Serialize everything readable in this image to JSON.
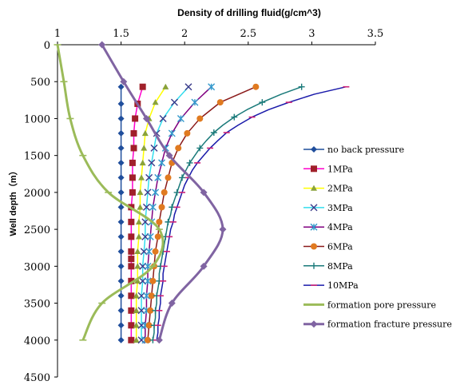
{
  "chart_data": {
    "type": "line",
    "title": "Density of drilling fluid(g/cm^3)",
    "xlabel": "Density of drilling fluid(g/cm^3)",
    "ylabel": "Well depth（m）",
    "xlim": [
      1,
      3.5
    ],
    "ylim": [
      0,
      4500
    ],
    "x_axis_position": "top",
    "y_axis_inverted": true,
    "grid": false,
    "legend_position": "right",
    "x_ticks": [
      1,
      1.5,
      2,
      2.5,
      3,
      3.5
    ],
    "x_tick_labels": [
      "1",
      "1.5",
      "2",
      "2.5",
      "3",
      "3.5"
    ],
    "y_ticks": [
      0,
      500,
      1000,
      1500,
      2000,
      2500,
      3000,
      3500,
      4000,
      4500
    ],
    "y_tick_labels": [
      "0",
      "500",
      "1000",
      "1500",
      "2000",
      "2500",
      "3000",
      "3500",
      "4000",
      "4500"
    ],
    "series": [
      {
        "name": "no back pressure",
        "color": "#1f4e9c",
        "marker": "diamond",
        "line_width": 1.5,
        "marker_every": 1,
        "points": [
          [
            1.5,
            570
          ],
          [
            1.5,
            800
          ],
          [
            1.5,
            1000
          ],
          [
            1.5,
            1200
          ],
          [
            1.5,
            1400
          ],
          [
            1.5,
            1600
          ],
          [
            1.5,
            1800
          ],
          [
            1.5,
            2000
          ],
          [
            1.5,
            2200
          ],
          [
            1.5,
            2400
          ],
          [
            1.5,
            2600
          ],
          [
            1.5,
            2800
          ],
          [
            1.5,
            3000
          ],
          [
            1.5,
            3200
          ],
          [
            1.5,
            3400
          ],
          [
            1.5,
            3600
          ],
          [
            1.5,
            3800
          ],
          [
            1.5,
            4000
          ]
        ]
      },
      {
        "name": "1MPa",
        "color": "#ff00cc",
        "marker": "square",
        "marker_color": "#a0202a",
        "line_width": 1.5,
        "marker_every": 1,
        "points": [
          [
            1.67,
            570
          ],
          [
            1.63,
            800
          ],
          [
            1.61,
            1000
          ],
          [
            1.6,
            1200
          ],
          [
            1.6,
            1400
          ],
          [
            1.59,
            1600
          ],
          [
            1.59,
            1800
          ],
          [
            1.59,
            2000
          ],
          [
            1.58,
            2200
          ],
          [
            1.58,
            2400
          ],
          [
            1.58,
            2600
          ],
          [
            1.58,
            2800
          ],
          [
            1.58,
            2900
          ],
          [
            1.58,
            3000
          ],
          [
            1.58,
            3200
          ],
          [
            1.58,
            3400
          ],
          [
            1.58,
            3600
          ],
          [
            1.58,
            3800
          ],
          [
            1.58,
            4000
          ]
        ]
      },
      {
        "name": "2MPa",
        "color": "#ffff00",
        "marker": "triangle",
        "marker_color": "#8aa23a",
        "line_width": 1.5,
        "marker_every": 1,
        "points": [
          [
            1.85,
            570
          ],
          [
            1.77,
            780
          ],
          [
            1.72,
            1000
          ],
          [
            1.69,
            1200
          ],
          [
            1.68,
            1400
          ],
          [
            1.67,
            1600
          ],
          [
            1.66,
            1800
          ],
          [
            1.65,
            2000
          ],
          [
            1.65,
            2200
          ],
          [
            1.64,
            2400
          ],
          [
            1.64,
            2600
          ],
          [
            1.63,
            2800
          ],
          [
            1.63,
            3000
          ],
          [
            1.63,
            3200
          ],
          [
            1.62,
            3400
          ],
          [
            1.62,
            3600
          ],
          [
            1.62,
            3800
          ],
          [
            1.62,
            4000
          ]
        ]
      },
      {
        "name": "3MPa",
        "color": "#33ddee",
        "marker": "x",
        "marker_color": "#3a3a8a",
        "line_width": 1.5,
        "marker_every": 1,
        "points": [
          [
            2.03,
            570
          ],
          [
            1.92,
            780
          ],
          [
            1.83,
            1000
          ],
          [
            1.78,
            1200
          ],
          [
            1.76,
            1400
          ],
          [
            1.74,
            1600
          ],
          [
            1.72,
            1800
          ],
          [
            1.71,
            2000
          ],
          [
            1.7,
            2200
          ],
          [
            1.69,
            2400
          ],
          [
            1.69,
            2600
          ],
          [
            1.68,
            2800
          ],
          [
            1.67,
            3000
          ],
          [
            1.67,
            3200
          ],
          [
            1.66,
            3400
          ],
          [
            1.66,
            3600
          ],
          [
            1.66,
            3800
          ],
          [
            1.66,
            4000
          ]
        ]
      },
      {
        "name": "4MPa",
        "color": "#800080",
        "marker": "x-star",
        "marker_color": "#3399cc",
        "line_width": 1.5,
        "marker_every": 1,
        "points": [
          [
            2.21,
            570
          ],
          [
            2.08,
            780
          ],
          [
            1.97,
            1000
          ],
          [
            1.9,
            1200
          ],
          [
            1.85,
            1400
          ],
          [
            1.82,
            1600
          ],
          [
            1.79,
            1800
          ],
          [
            1.77,
            2000
          ],
          [
            1.75,
            2200
          ],
          [
            1.74,
            2400
          ],
          [
            1.73,
            2600
          ],
          [
            1.72,
            2800
          ],
          [
            1.71,
            3000
          ],
          [
            1.71,
            3200
          ],
          [
            1.7,
            3400
          ],
          [
            1.7,
            3600
          ],
          [
            1.69,
            3800
          ],
          [
            1.69,
            4000
          ]
        ]
      },
      {
        "name": "6MPa",
        "color": "#8b1a1a",
        "marker": "circle",
        "marker_color": "#e07a20",
        "line_width": 1.5,
        "marker_every": 1,
        "points": [
          [
            2.56,
            570
          ],
          [
            2.28,
            780
          ],
          [
            2.12,
            1000
          ],
          [
            2.02,
            1200
          ],
          [
            1.95,
            1400
          ],
          [
            1.9,
            1600
          ],
          [
            1.87,
            1800
          ],
          [
            1.84,
            2000
          ],
          [
            1.82,
            2200
          ],
          [
            1.8,
            2400
          ],
          [
            1.79,
            2600
          ],
          [
            1.77,
            2800
          ],
          [
            1.76,
            3000
          ],
          [
            1.75,
            3200
          ],
          [
            1.74,
            3400
          ],
          [
            1.73,
            3600
          ],
          [
            1.72,
            3800
          ],
          [
            1.71,
            4000
          ]
        ]
      },
      {
        "name": "8MPa",
        "color": "#1a7a7a",
        "marker": "plus",
        "marker_color": "#1a7a7a",
        "line_width": 1.5,
        "marker_every": 2,
        "points": [
          [
            2.92,
            570
          ],
          [
            2.76,
            670
          ],
          [
            2.61,
            780
          ],
          [
            2.49,
            880
          ],
          [
            2.39,
            980
          ],
          [
            2.3,
            1090
          ],
          [
            2.23,
            1190
          ],
          [
            2.17,
            1300
          ],
          [
            2.12,
            1400
          ],
          [
            2.08,
            1500
          ],
          [
            2.04,
            1600
          ],
          [
            2.01,
            1700
          ],
          [
            1.98,
            1800
          ],
          [
            1.96,
            1900
          ],
          [
            1.94,
            2000
          ],
          [
            1.92,
            2100
          ],
          [
            1.9,
            2200
          ],
          [
            1.89,
            2300
          ],
          [
            1.87,
            2400
          ],
          [
            1.86,
            2500
          ],
          [
            1.85,
            2600
          ],
          [
            1.84,
            2700
          ],
          [
            1.83,
            2800
          ],
          [
            1.82,
            2900
          ],
          [
            1.81,
            3000
          ],
          [
            1.8,
            3100
          ],
          [
            1.8,
            3200
          ],
          [
            1.79,
            3300
          ],
          [
            1.78,
            3400
          ],
          [
            1.78,
            3500
          ],
          [
            1.77,
            3600
          ],
          [
            1.77,
            3700
          ],
          [
            1.76,
            3800
          ],
          [
            1.76,
            3900
          ],
          [
            1.75,
            4000
          ]
        ]
      },
      {
        "name": "10MPa",
        "color": "#1a1aaa",
        "marker": "dash",
        "marker_color": "#cc2277",
        "line_width": 1.5,
        "marker_every": 2,
        "points": [
          [
            3.27,
            570
          ],
          [
            3.02,
            670
          ],
          [
            2.82,
            780
          ],
          [
            2.66,
            880
          ],
          [
            2.53,
            980
          ],
          [
            2.42,
            1090
          ],
          [
            2.33,
            1190
          ],
          [
            2.26,
            1300
          ],
          [
            2.2,
            1400
          ],
          [
            2.15,
            1500
          ],
          [
            2.1,
            1600
          ],
          [
            2.06,
            1700
          ],
          [
            2.03,
            1800
          ],
          [
            2.0,
            1900
          ],
          [
            1.98,
            2000
          ],
          [
            1.96,
            2100
          ],
          [
            1.94,
            2200
          ],
          [
            1.92,
            2300
          ],
          [
            1.91,
            2400
          ],
          [
            1.89,
            2500
          ],
          [
            1.88,
            2600
          ],
          [
            1.87,
            2700
          ],
          [
            1.86,
            2800
          ],
          [
            1.85,
            2900
          ],
          [
            1.84,
            3000
          ],
          [
            1.83,
            3100
          ],
          [
            1.83,
            3200
          ],
          [
            1.82,
            3300
          ],
          [
            1.81,
            3400
          ],
          [
            1.81,
            3500
          ],
          [
            1.8,
            3600
          ],
          [
            1.8,
            3700
          ],
          [
            1.79,
            3800
          ],
          [
            1.79,
            3900
          ],
          [
            1.78,
            4000
          ]
        ]
      },
      {
        "name": "formation pore pressure",
        "color": "#9bbb59",
        "marker": "dash",
        "marker_color": "#9bbb59",
        "line_width": 3,
        "smooth": true,
        "marker_every": 1,
        "points": [
          [
            1.0,
            0
          ],
          [
            1.05,
            500
          ],
          [
            1.1,
            1000
          ],
          [
            1.2,
            1500
          ],
          [
            1.4,
            2000
          ],
          [
            1.8,
            2500
          ],
          [
            1.75,
            3000
          ],
          [
            1.35,
            3500
          ],
          [
            1.2,
            4000
          ]
        ]
      },
      {
        "name": "formation fracture pressure",
        "color": "#8064a2",
        "marker": "diamond",
        "marker_color": "#8064a2",
        "line_width": 3,
        "smooth": true,
        "marker_every": 1,
        "points": [
          [
            1.35,
            0
          ],
          [
            1.52,
            500
          ],
          [
            1.7,
            1000
          ],
          [
            1.88,
            1500
          ],
          [
            2.15,
            2000
          ],
          [
            2.3,
            2500
          ],
          [
            2.15,
            3000
          ],
          [
            1.9,
            3500
          ],
          [
            1.8,
            4000
          ]
        ]
      }
    ]
  }
}
